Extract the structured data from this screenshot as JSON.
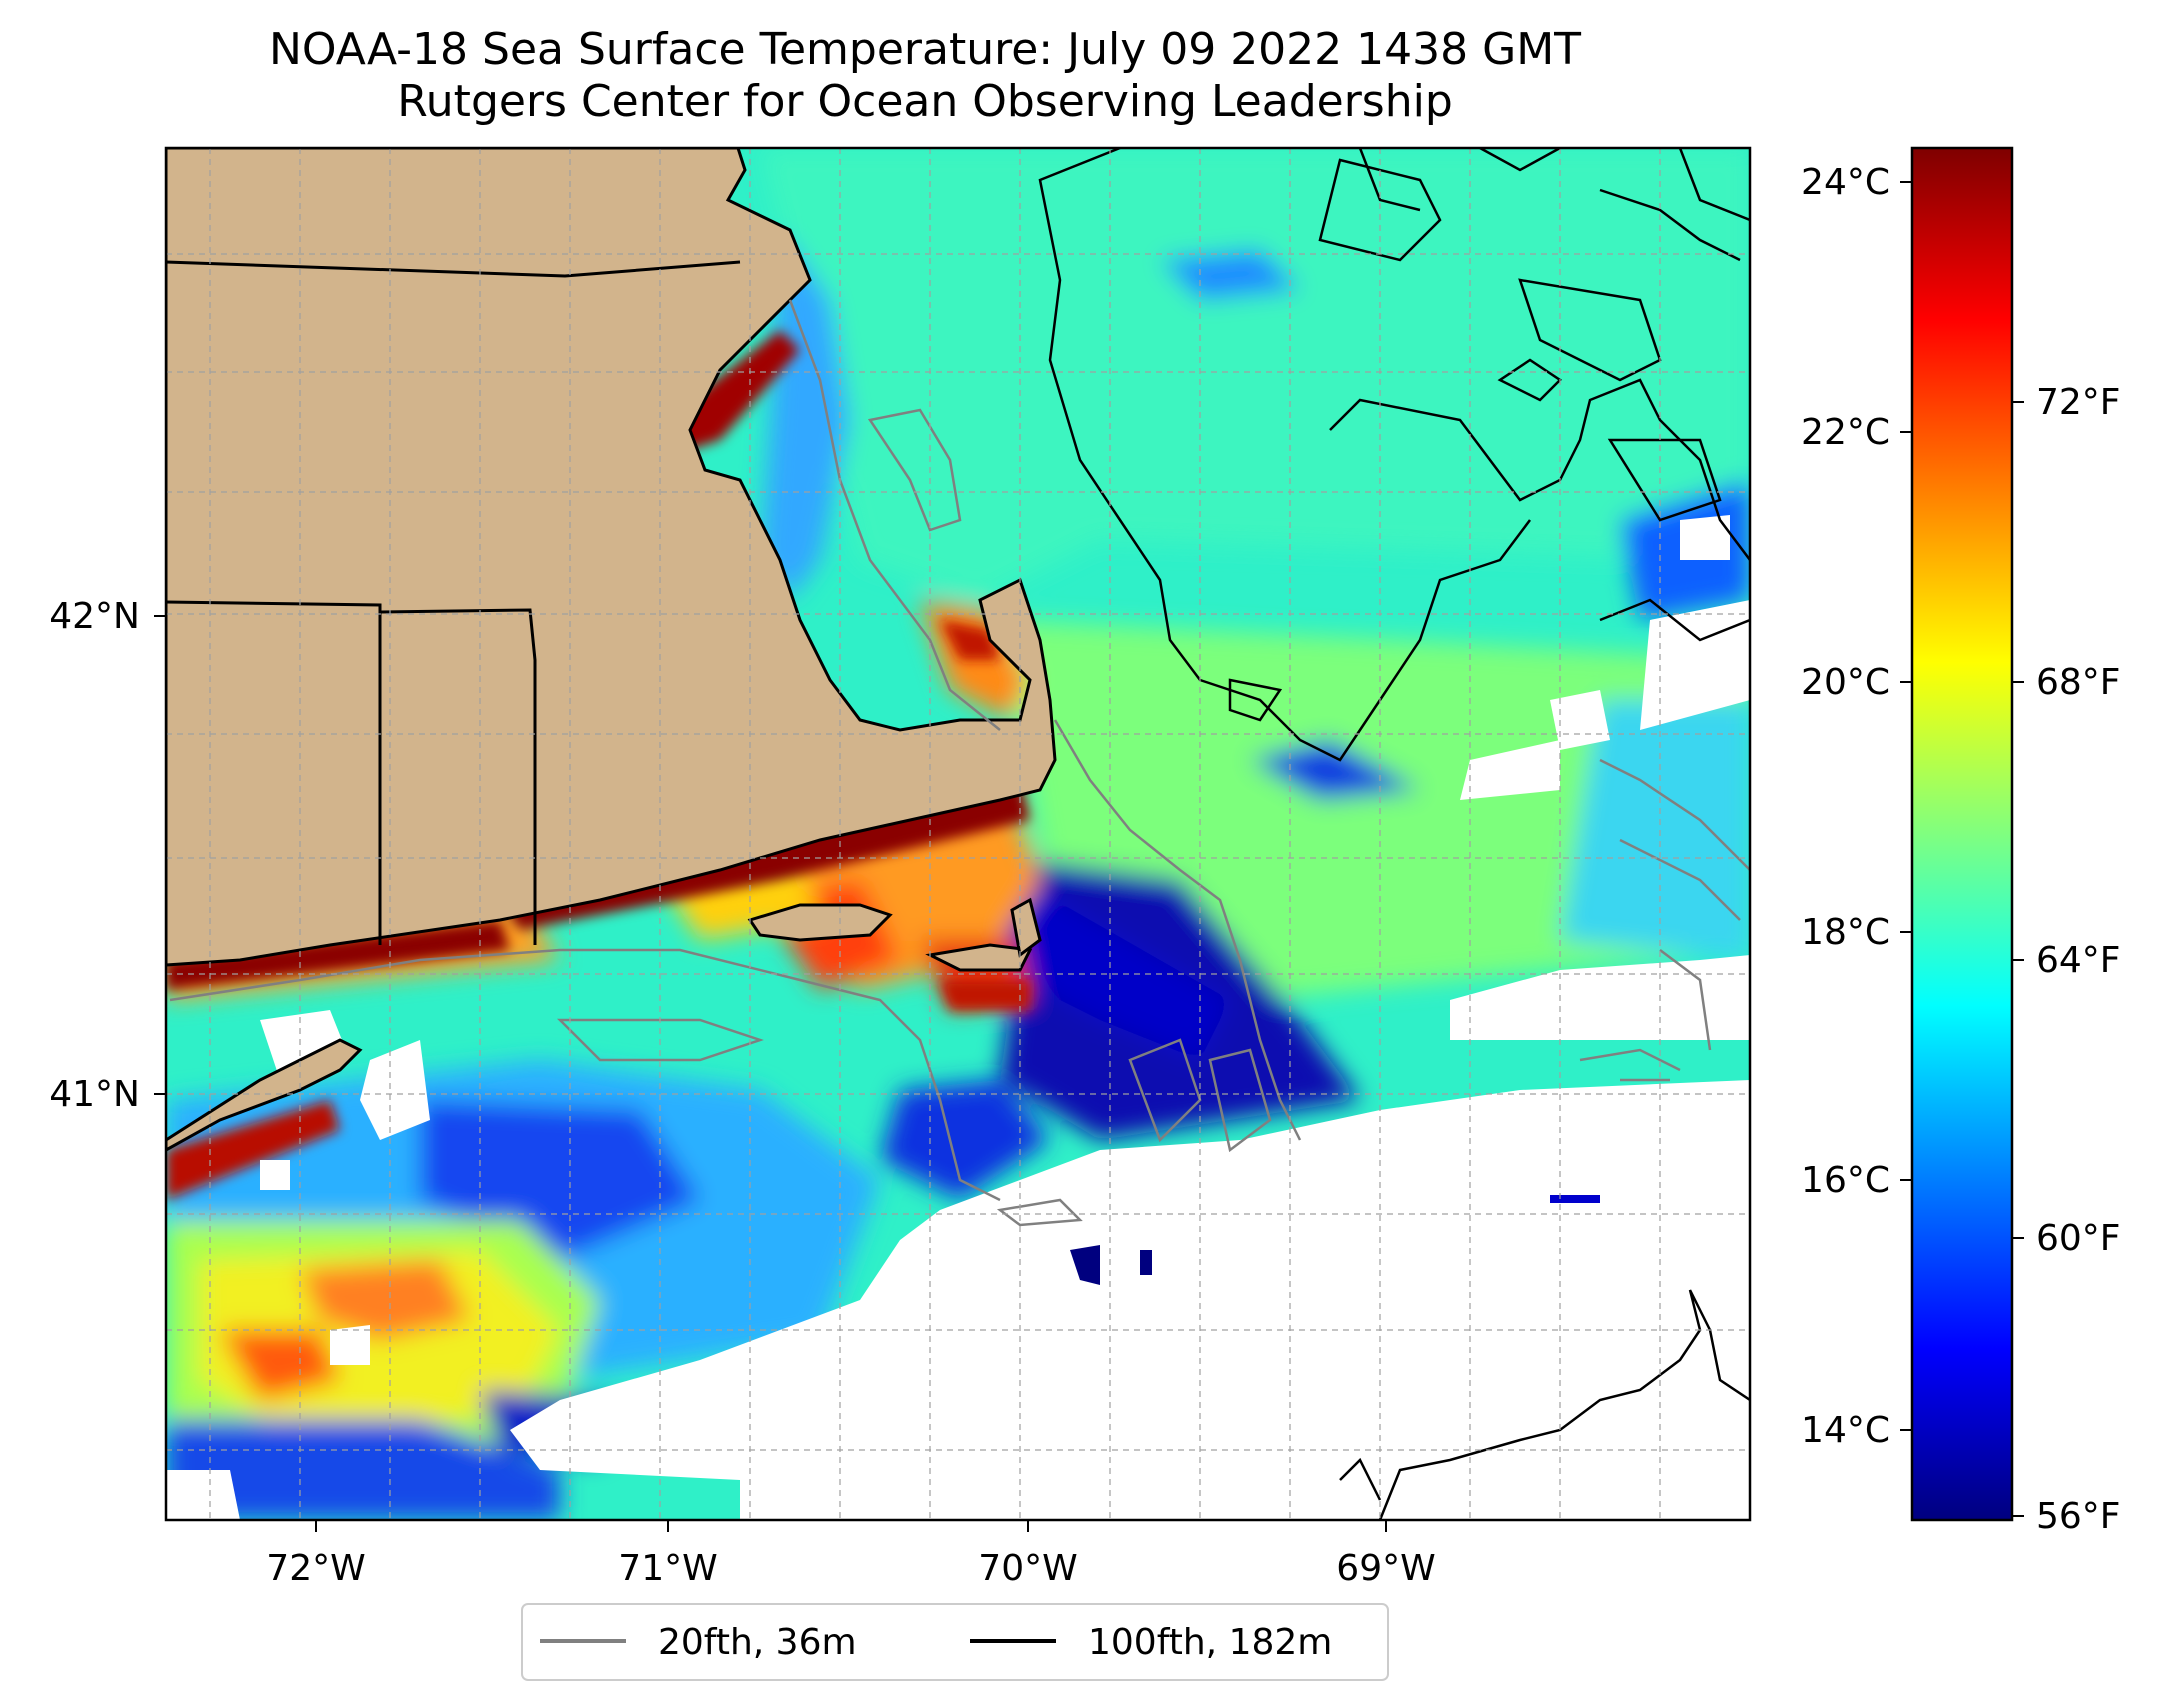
{
  "title": {
    "line1": "NOAA-18 Sea Surface Temperature: July 09 2022 1438 GMT",
    "line2": "Rutgers Center for Ocean Observing Leadership"
  },
  "map": {
    "lon_range": [
      -72.42,
      -68.0
    ],
    "lat_range": [
      40.13,
      42.97
    ],
    "x_ticks": [
      "72°W",
      "71°W",
      "70°W",
      "69°W"
    ],
    "y_ticks": [
      "42°N",
      "41°N"
    ],
    "land_color": "#d2b48c",
    "no_data_color": "#ffffff"
  },
  "colorbar": {
    "colormap": "jet",
    "celsius_ticks": [
      "24°C",
      "22°C",
      "20°C",
      "18°C",
      "16°C",
      "14°C"
    ],
    "fahrenheit_ticks": [
      "72°F",
      "68°F",
      "64°F",
      "60°F",
      "56°F"
    ]
  },
  "legend": {
    "items": [
      {
        "label": "20fth, 36m",
        "color": "#808080"
      },
      {
        "label": "100fth, 182m",
        "color": "#000000"
      }
    ]
  }
}
